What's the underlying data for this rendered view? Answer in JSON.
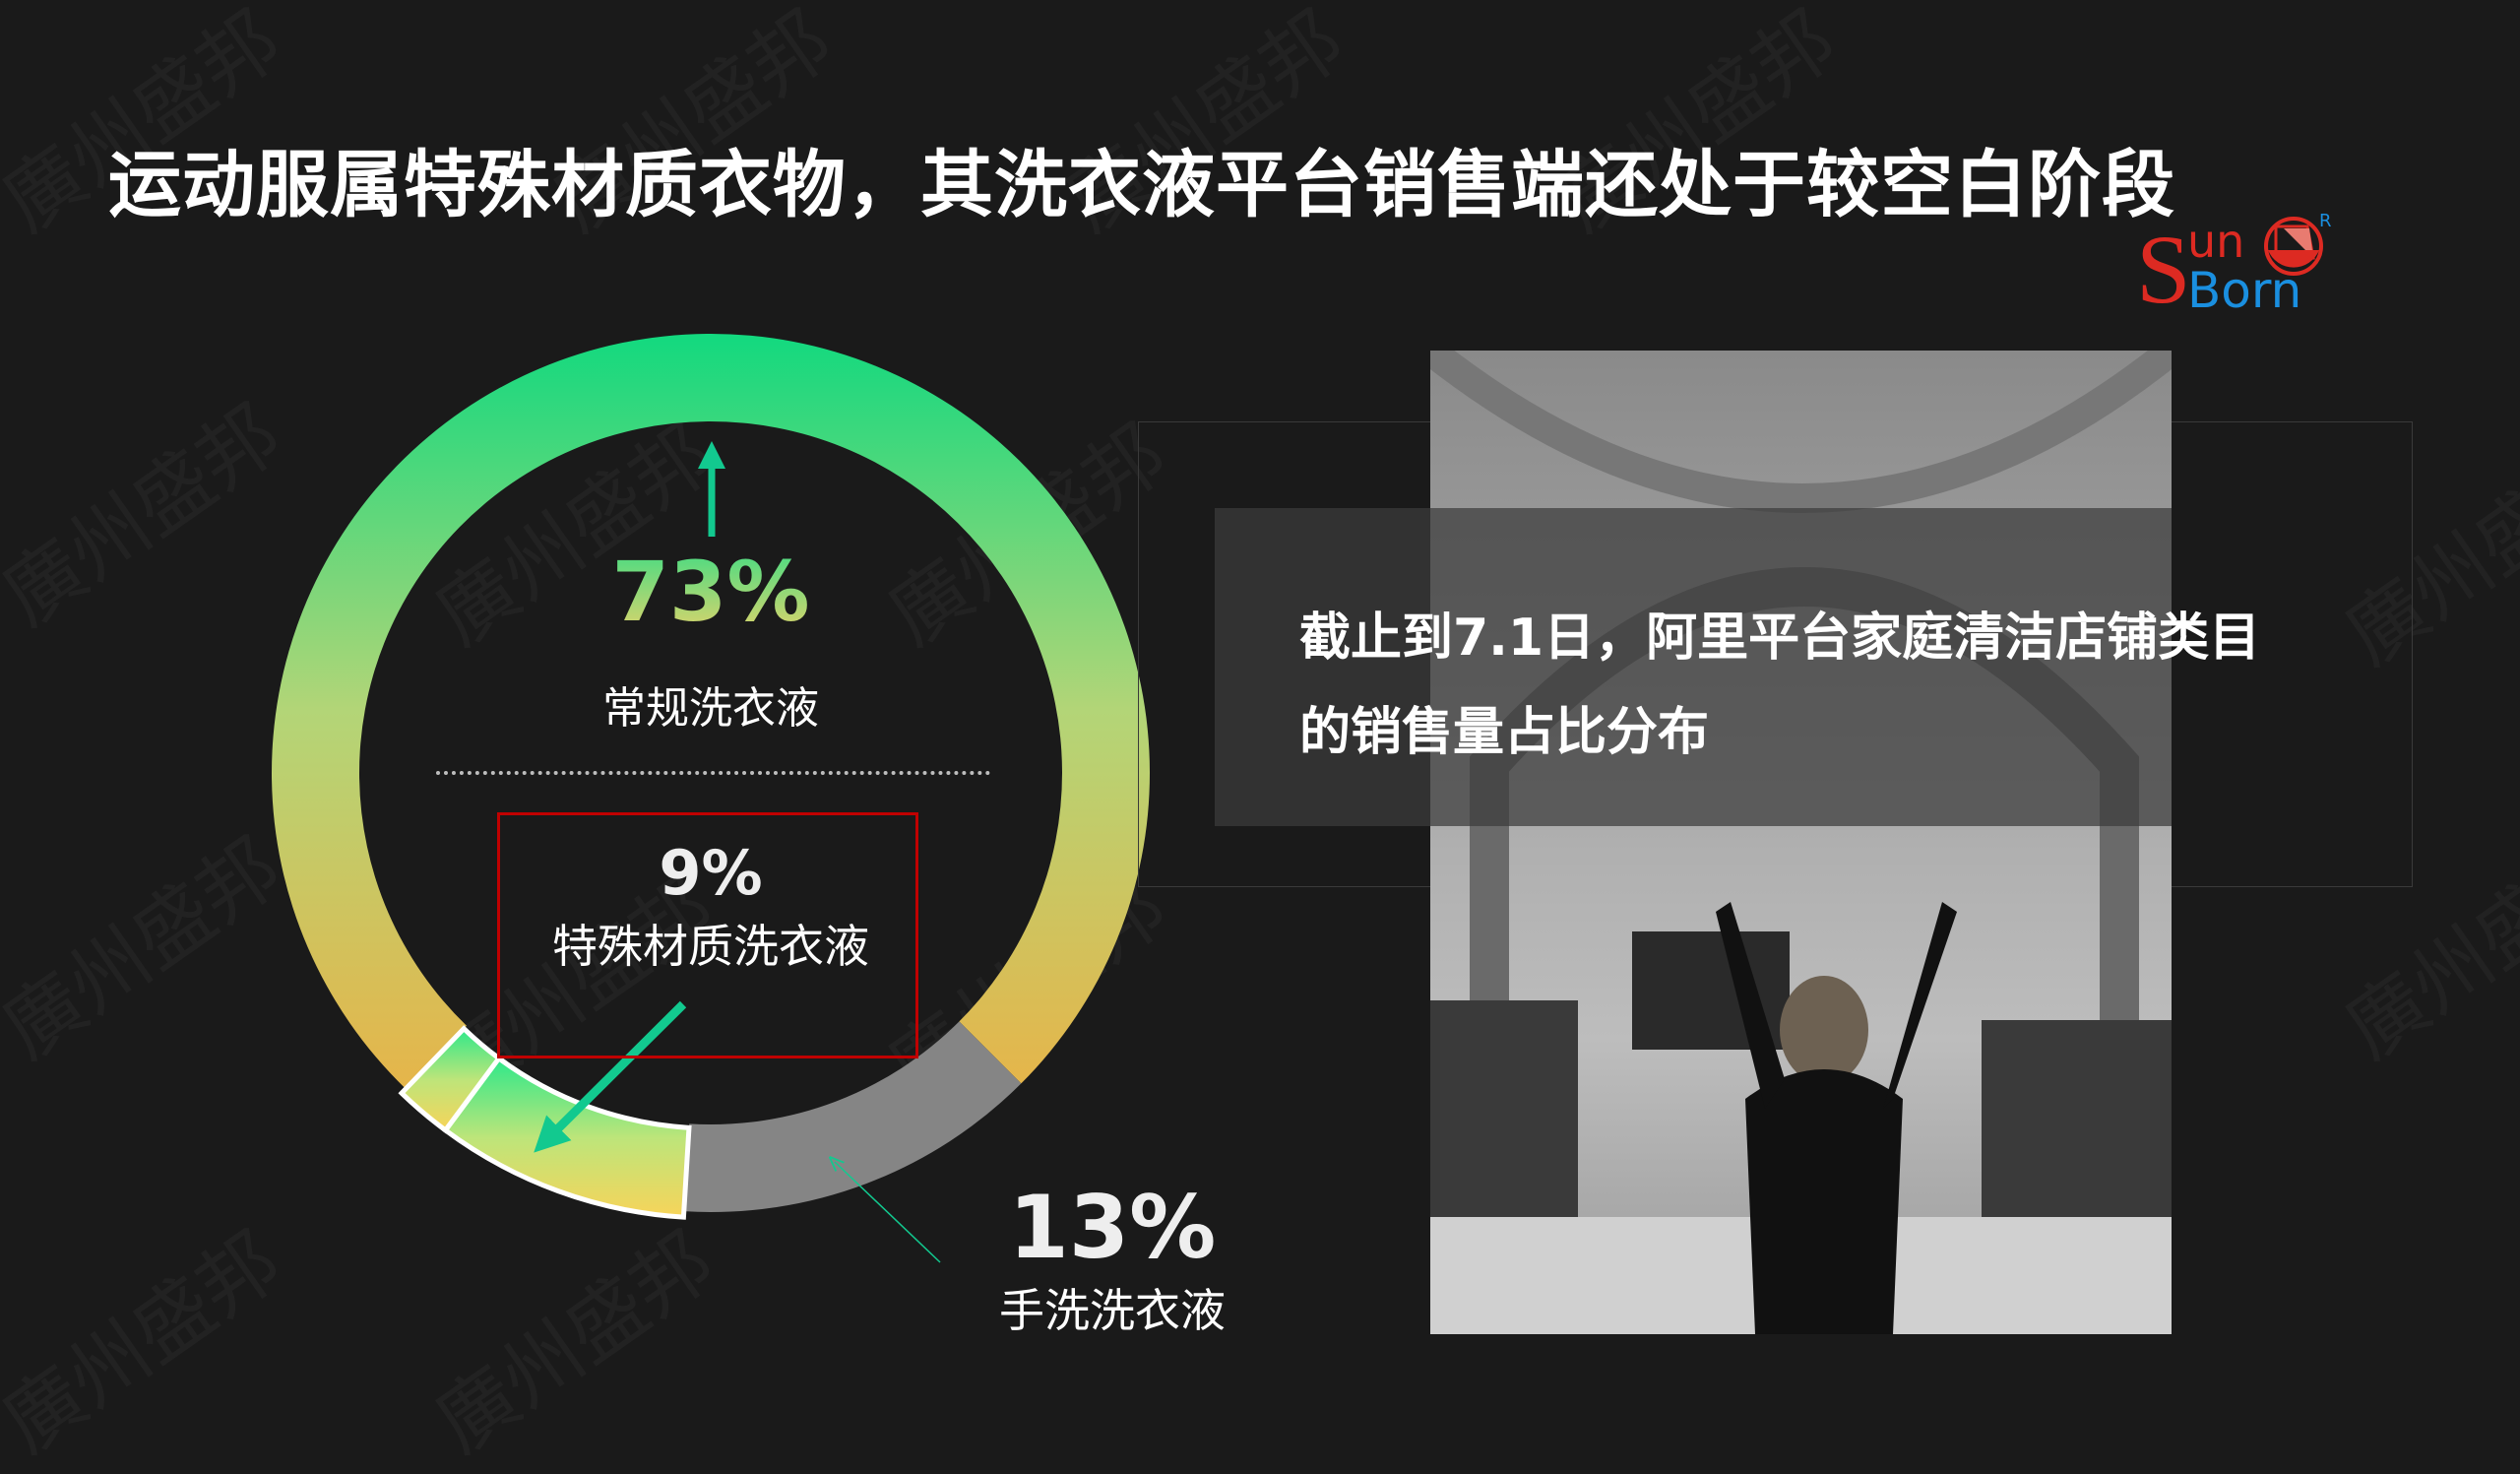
{
  "title": "运动服属特殊材质衣物，其洗衣液平台销售端还处于较空白阶段",
  "logo": {
    "text_top": "un",
    "letter": "S",
    "text_bottom": "Born",
    "mark": "R"
  },
  "watermark": "廣州盛邦",
  "chart_data": {
    "type": "pie",
    "style": "donut",
    "segments": [
      {
        "label": "常规洗衣液",
        "value": 73,
        "display": "73%",
        "color": "#17d67c"
      },
      {
        "label": "手洗洗衣液",
        "value": 13,
        "display": "13%",
        "color": "#858585"
      },
      {
        "label": "特殊材质洗衣液",
        "value": 9,
        "display": "9%",
        "color": "#f5d15a"
      }
    ]
  },
  "caption": {
    "line1": "截止到7.1日，阿里平台家庭清洁店铺类目",
    "line2": "的销售量占比分布"
  },
  "colors": {
    "background": "#1a1a1a",
    "accent_green": "#12c98f",
    "highlight_box": "#c00000"
  }
}
